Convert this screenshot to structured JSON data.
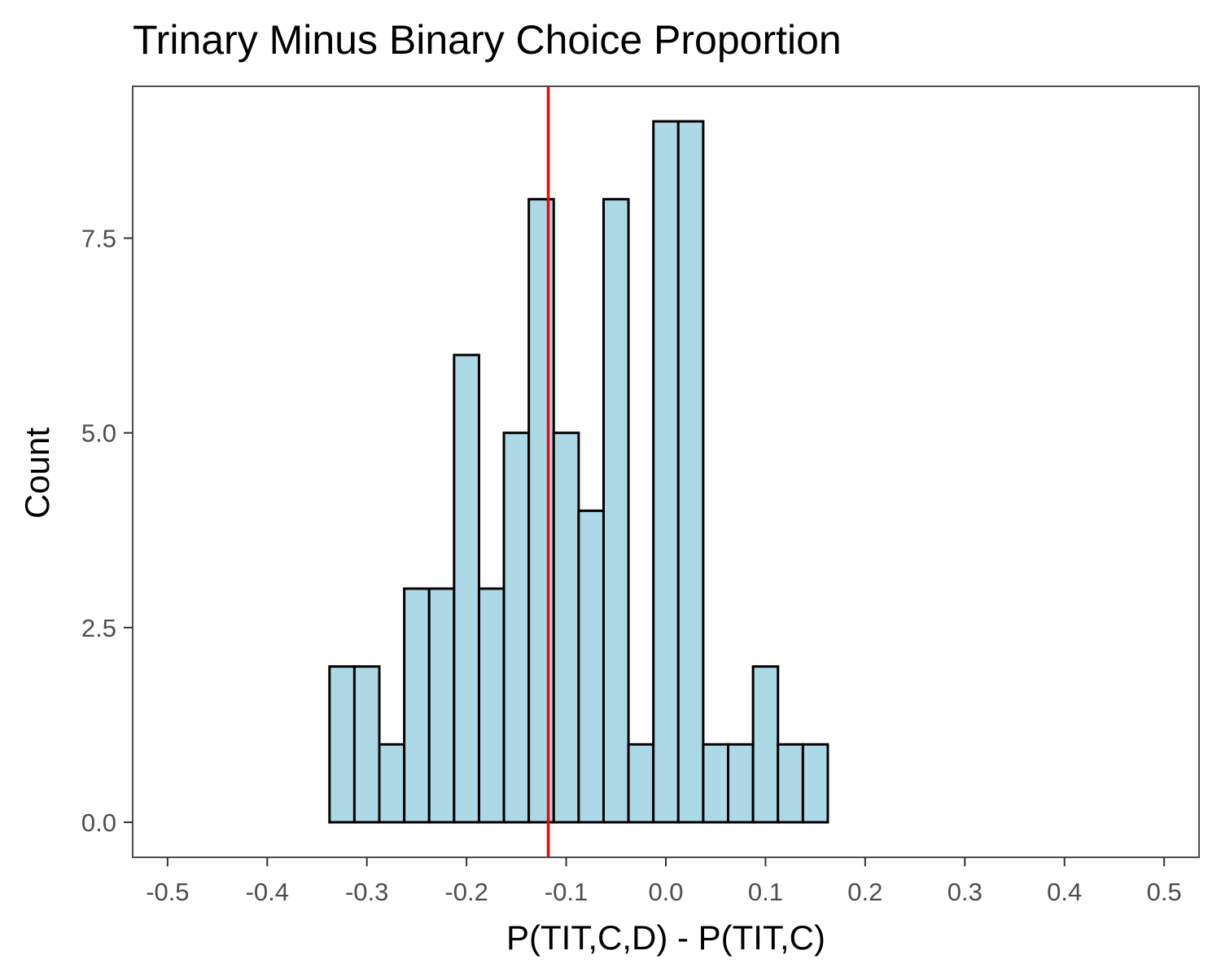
{
  "chart_data": {
    "type": "histogram",
    "title": "Trinary Minus Binary Choice Proportion",
    "xlabel": "P(TIT,C,D) - P(TIT,C)",
    "ylabel": "Count",
    "xlim": [
      -0.535,
      0.535
    ],
    "ylim": [
      -0.45,
      9.45
    ],
    "x_ticks": [
      -0.5,
      -0.4,
      -0.3,
      -0.2,
      -0.1,
      0.0,
      0.1,
      0.2,
      0.3,
      0.4,
      0.5
    ],
    "x_tick_labels": [
      "-0.5",
      "-0.4",
      "-0.3",
      "-0.2",
      "-0.1",
      "0.0",
      "0.1",
      "0.2",
      "0.3",
      "0.4",
      "0.5"
    ],
    "y_ticks": [
      0,
      2.5,
      5,
      7.5
    ],
    "y_tick_labels": [
      "0.0",
      "2.5",
      "5.0",
      "7.5"
    ],
    "bin_start": -0.4875,
    "bin_width": 0.025,
    "counts": [
      0,
      0,
      0,
      0,
      0,
      0,
      2,
      2,
      1,
      3,
      3,
      6,
      3,
      5,
      8,
      5,
      4,
      8,
      1,
      9,
      9,
      1,
      1,
      2,
      1,
      1,
      0,
      0,
      0,
      0,
      0,
      0,
      0,
      0,
      0,
      0,
      0,
      0,
      0
    ],
    "reference_line": {
      "x": -0.118,
      "color": "#ff0000"
    },
    "colors": {
      "bar_fill": "#add8e6",
      "bar_stroke": "#000000",
      "panel_border": "#4d4d4d"
    },
    "grid": false
  }
}
